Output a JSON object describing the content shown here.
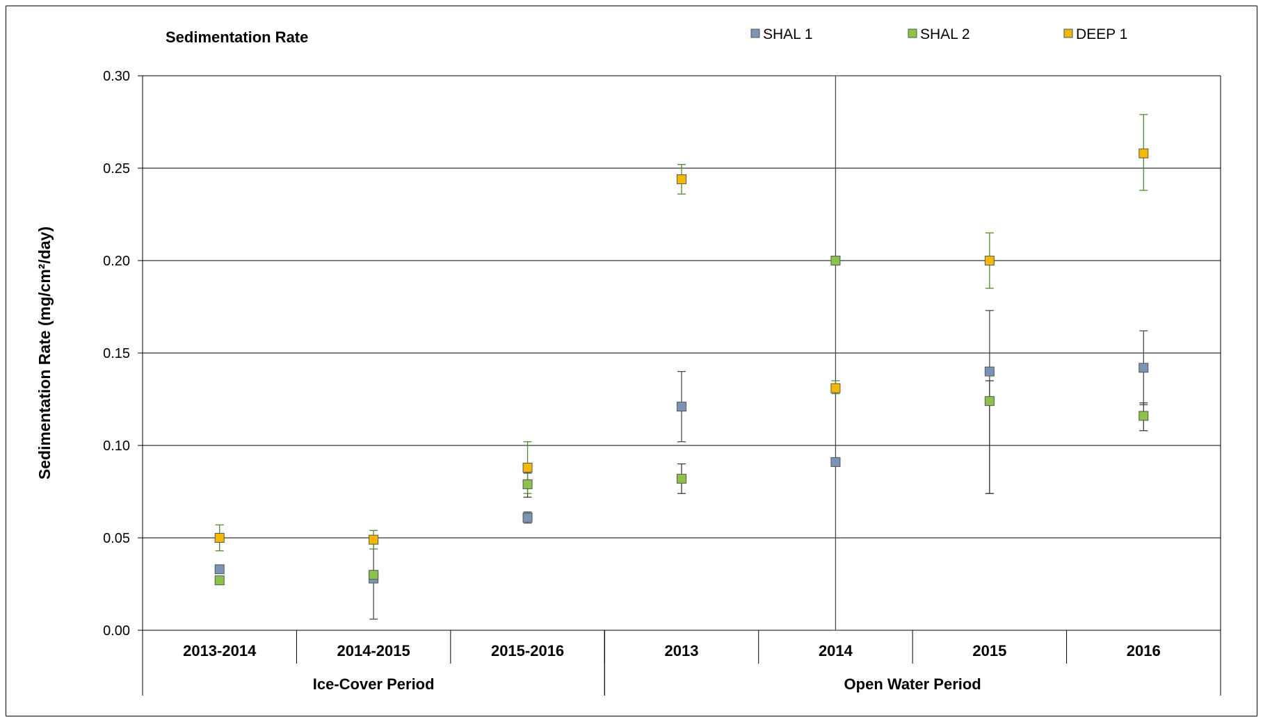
{
  "chart_data": {
    "type": "scatter",
    "title": "Sedimentation Rate",
    "ylabel": "Sedimentation Rate (mg/cm²/day)",
    "xlabel": "",
    "ylim": [
      0,
      0.3
    ],
    "yticks": [
      "0.00",
      "0.05",
      "0.10",
      "0.15",
      "0.20",
      "0.25",
      "0.30"
    ],
    "categories": [
      "2013-2014",
      "2014-2015",
      "2015-2016",
      "2013",
      "2014",
      "2015",
      "2016"
    ],
    "groups": [
      {
        "label": "Ice-Cover Period",
        "span": 3
      },
      {
        "label": "Open Water Period",
        "span": 4
      }
    ],
    "grid": "horizontal",
    "legend_position": "top",
    "series": [
      {
        "name": "SHAL 1",
        "color": "#7b93b5",
        "values": [
          0.033,
          0.028,
          0.061,
          0.121,
          0.091,
          0.14,
          0.142
        ],
        "error_low": [
          null,
          0.006,
          0.058,
          0.102,
          0.0,
          0.074,
          0.122
        ],
        "error_high": [
          null,
          0.049,
          0.064,
          0.14,
          0.3,
          0.173,
          0.162
        ],
        "error_color": "#4a4a4a"
      },
      {
        "name": "SHAL 2",
        "color": "#8bc34a",
        "values": [
          0.027,
          0.03,
          0.079,
          0.082,
          0.2,
          0.124,
          0.116
        ],
        "error_low": [
          null,
          null,
          0.072,
          0.074,
          null,
          0.074,
          0.108
        ],
        "error_high": [
          null,
          null,
          0.085,
          0.09,
          null,
          0.135,
          0.123
        ],
        "error_color": "#3b3b3b"
      },
      {
        "name": "DEEP 1",
        "color": "#f5b800",
        "values": [
          0.05,
          0.049,
          0.088,
          0.244,
          0.131,
          0.2,
          0.258
        ],
        "error_low": [
          0.043,
          0.044,
          0.074,
          0.236,
          0.128,
          0.185,
          0.238
        ],
        "error_high": [
          0.057,
          0.054,
          0.102,
          0.252,
          0.135,
          0.215,
          0.279
        ],
        "error_color": "#4f8a2a"
      }
    ]
  }
}
